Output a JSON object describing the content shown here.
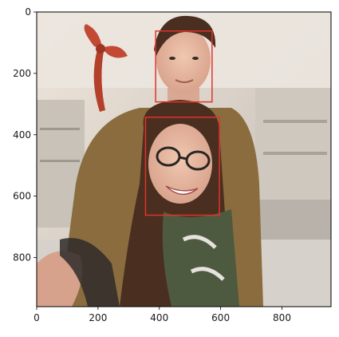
{
  "chart_data": {
    "type": "image",
    "title": "",
    "xlabel": "",
    "ylabel": "",
    "xlim": [
      0,
      960
    ],
    "ylim": [
      960,
      0
    ],
    "x_ticks": [
      {
        "value": 0,
        "label": "0"
      },
      {
        "value": 200,
        "label": "200"
      },
      {
        "value": 400,
        "label": "400"
      },
      {
        "value": 600,
        "label": "600"
      },
      {
        "value": 800,
        "label": "800"
      }
    ],
    "y_ticks": [
      {
        "value": 0,
        "label": "0"
      },
      {
        "value": 200,
        "label": "200"
      },
      {
        "value": 400,
        "label": "400"
      },
      {
        "value": 600,
        "label": "600"
      },
      {
        "value": 800,
        "label": "800"
      }
    ],
    "boxes": [
      {
        "x0": 388,
        "y0": 62,
        "x1": 572,
        "y1": 293,
        "color": "#e0332b"
      },
      {
        "x0": 355,
        "y0": 343,
        "x1": 596,
        "y1": 662,
        "color": "#e0332b"
      }
    ],
    "scene_colors": {
      "background": "#d9d2c9",
      "wall": "#ece7e1",
      "jacket": "#8a6c3e",
      "hair": "#4a2e20",
      "skin": "#e7b8a0",
      "scarf": "#4e5a3f",
      "bow": "#c24a34",
      "glasses": "#2a2623"
    }
  }
}
